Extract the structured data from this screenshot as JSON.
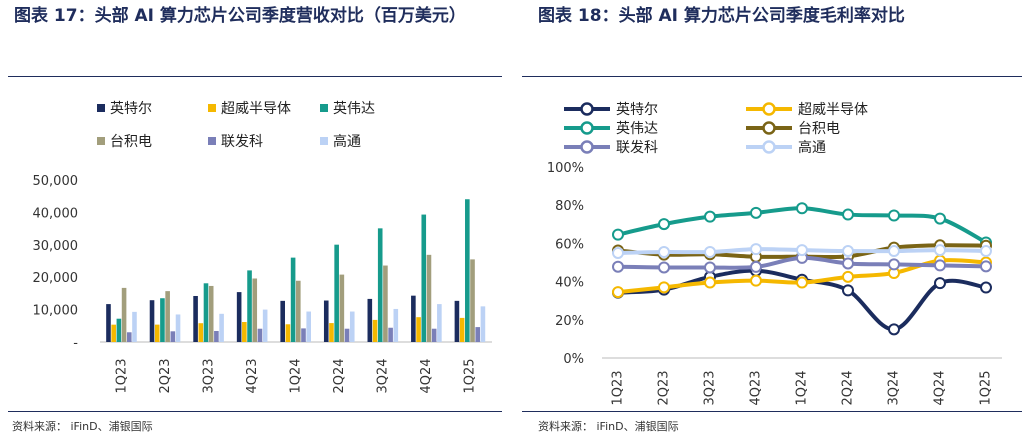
{
  "left": {
    "title": "图表 17：头部 AI 算力芯片公司季度营收对比（百万美元）",
    "source": "资料来源：  iFinD、浦银国际"
  },
  "right": {
    "title": "图表 18：头部 AI 算力芯片公司季度毛利率对比",
    "source": "资料来源：  iFinD、浦银国际"
  },
  "chart_data": [
    {
      "type": "bar",
      "categories": [
        "1Q23",
        "2Q23",
        "3Q23",
        "4Q23",
        "1Q24",
        "2Q24",
        "3Q24",
        "4Q24",
        "1Q25"
      ],
      "ylim": [
        0,
        50000
      ],
      "yticks": [
        "-",
        "10,000",
        "20,000",
        "30,000",
        "40,000",
        "50,000"
      ],
      "ytick_values": [
        0,
        10000,
        20000,
        30000,
        40000,
        50000
      ],
      "legend_position": "top",
      "grid": false,
      "series": [
        {
          "name": "英特尔",
          "color": "#1b2c5e",
          "values": [
            11700,
            12900,
            14200,
            15400,
            12700,
            12800,
            13300,
            14300,
            12700
          ]
        },
        {
          "name": "超威半导体",
          "color": "#f5b800",
          "values": [
            5350,
            5360,
            5800,
            6170,
            5470,
            5840,
            6820,
            7660,
            7440
          ]
        },
        {
          "name": "英伟达",
          "color": "#169b8c",
          "values": [
            7190,
            13510,
            18120,
            22100,
            26040,
            30040,
            35080,
            39330,
            44060
          ]
        },
        {
          "name": "台积电",
          "color": "#a29e7c",
          "values": [
            16700,
            15700,
            17300,
            19600,
            18900,
            20800,
            23600,
            26900,
            25500
          ]
        },
        {
          "name": "联发科",
          "color": "#7a7fb8",
          "values": [
            3000,
            3300,
            3400,
            4100,
            4200,
            4100,
            4400,
            4100,
            4600
          ]
        },
        {
          "name": "高通",
          "color": "#bcd2f5",
          "values": [
            9300,
            8500,
            8700,
            10000,
            9400,
            9400,
            10200,
            11700,
            11000
          ]
        }
      ]
    },
    {
      "type": "line",
      "categories": [
        "1Q23",
        "2Q23",
        "3Q23",
        "4Q23",
        "1Q24",
        "2Q24",
        "3Q24",
        "4Q24",
        "1Q25"
      ],
      "ylim": [
        0,
        100
      ],
      "yticks": [
        "0%",
        "20%",
        "40%",
        "60%",
        "80%",
        "100%"
      ],
      "ytick_values": [
        0,
        20,
        40,
        60,
        80,
        100
      ],
      "legend_position": "top",
      "grid": false,
      "series": [
        {
          "name": "英特尔",
          "color": "#1b2c5e",
          "values": [
            34.2,
            35.8,
            42.5,
            45.7,
            41.0,
            35.4,
            15.0,
            39.2,
            36.9
          ]
        },
        {
          "name": "超威半导体",
          "color": "#f5b800",
          "values": [
            34.5,
            37.0,
            39.5,
            40.5,
            39.5,
            42.5,
            44.5,
            51.0,
            50.0
          ]
        },
        {
          "name": "英伟达",
          "color": "#169b8c",
          "values": [
            64.6,
            70.1,
            74.0,
            76.0,
            78.4,
            75.1,
            74.6,
            73.0,
            60.5
          ]
        },
        {
          "name": "台积电",
          "color": "#7a6416",
          "values": [
            56.3,
            54.1,
            54.3,
            53.0,
            53.1,
            53.2,
            57.8,
            59.0,
            58.8
          ]
        },
        {
          "name": "联发科",
          "color": "#7a7fb8",
          "values": [
            47.8,
            47.4,
            47.4,
            47.7,
            52.4,
            49.5,
            49.0,
            48.5,
            48.0
          ]
        },
        {
          "name": "高通",
          "color": "#bcd2f5",
          "values": [
            55.0,
            55.5,
            55.5,
            57.0,
            56.5,
            56.0,
            56.0,
            56.5,
            56.0
          ]
        }
      ]
    }
  ]
}
